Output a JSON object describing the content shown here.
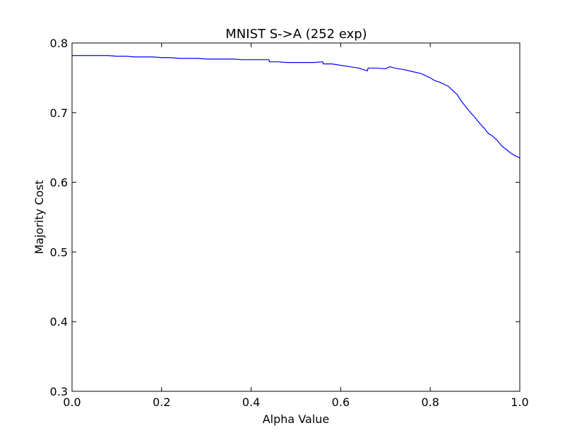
{
  "chart_data": {
    "type": "line",
    "title": "MNIST S->A (252 exp)",
    "xlabel": "Alpha Value",
    "ylabel": "Majority Cost",
    "xlim": [
      0.0,
      1.0
    ],
    "ylim": [
      0.3,
      0.8
    ],
    "xticks": [
      0.0,
      0.2,
      0.4,
      0.6,
      0.8,
      1.0
    ],
    "xtick_labels": [
      "0.0",
      "0.2",
      "0.4",
      "0.6",
      "0.8",
      "1.0"
    ],
    "yticks": [
      0.3,
      0.4,
      0.5,
      0.6,
      0.7,
      0.8
    ],
    "ytick_labels": [
      "0.3",
      "0.4",
      "0.5",
      "0.6",
      "0.7",
      "0.8"
    ],
    "grid": false,
    "colors": {
      "series": "#0000ff",
      "axes": "#000000",
      "background": "#ffffff"
    },
    "series": [
      {
        "x": [
          0.0,
          0.02,
          0.04,
          0.06,
          0.08,
          0.1,
          0.12,
          0.14,
          0.16,
          0.18,
          0.2,
          0.22,
          0.24,
          0.26,
          0.28,
          0.3,
          0.32,
          0.34,
          0.36,
          0.38,
          0.4,
          0.42,
          0.44,
          0.441,
          0.46,
          0.48,
          0.5,
          0.52,
          0.54,
          0.56,
          0.561,
          0.58,
          0.6,
          0.62,
          0.64,
          0.66,
          0.661,
          0.68,
          0.7,
          0.71,
          0.72,
          0.74,
          0.76,
          0.78,
          0.8,
          0.81,
          0.82,
          0.84,
          0.85,
          0.86,
          0.87,
          0.88,
          0.89,
          0.9,
          0.91,
          0.92,
          0.93,
          0.94,
          0.95,
          0.96,
          0.97,
          0.98,
          0.99,
          1.0
        ],
        "y": [
          0.782,
          0.782,
          0.782,
          0.782,
          0.782,
          0.781,
          0.781,
          0.78,
          0.78,
          0.78,
          0.779,
          0.779,
          0.778,
          0.778,
          0.778,
          0.777,
          0.777,
          0.777,
          0.777,
          0.776,
          0.776,
          0.776,
          0.776,
          0.773,
          0.773,
          0.772,
          0.772,
          0.772,
          0.772,
          0.773,
          0.77,
          0.77,
          0.768,
          0.766,
          0.764,
          0.76,
          0.764,
          0.764,
          0.763,
          0.766,
          0.764,
          0.762,
          0.759,
          0.756,
          0.75,
          0.746,
          0.744,
          0.738,
          0.732,
          0.726,
          0.716,
          0.708,
          0.7,
          0.693,
          0.685,
          0.678,
          0.67,
          0.666,
          0.66,
          0.652,
          0.647,
          0.642,
          0.638,
          0.635
        ]
      }
    ]
  }
}
